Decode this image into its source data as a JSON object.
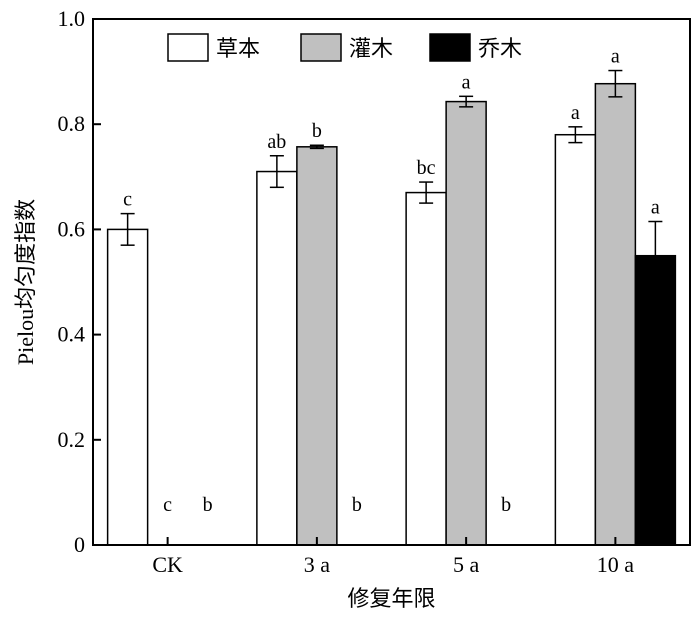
{
  "chart_data": {
    "type": "bar",
    "xlabel": "修复年限",
    "ylabel": "Pielou均匀度指数",
    "ylim": [
      0,
      1.0
    ],
    "yticks": [
      "0",
      "0.2",
      "0.4",
      "0.6",
      "0.8",
      "1.0"
    ],
    "categories": [
      "CK",
      "3 a",
      "5 a",
      "10 a"
    ],
    "legend_position": "top",
    "series": [
      {
        "name": "草本",
        "color": "#ffffff",
        "values": [
          0.6,
          0.71,
          0.67,
          0.78
        ],
        "errors": [
          0.03,
          0.03,
          0.02,
          0.015
        ],
        "labels": [
          "c",
          "ab",
          "bc",
          "a"
        ]
      },
      {
        "name": "灌木",
        "color": "#c0c0c0",
        "values": [
          0,
          0.757,
          0.843,
          0.877
        ],
        "errors": [
          0,
          0.003,
          0.01,
          0.025
        ],
        "labels": [
          "c",
          "b",
          "a",
          "a"
        ]
      },
      {
        "name": "乔木",
        "color": "#000000",
        "values": [
          0,
          0,
          0,
          0.55
        ],
        "errors": [
          0,
          0,
          0,
          0.065
        ],
        "labels": [
          "b",
          "b",
          "b",
          "a"
        ]
      }
    ]
  }
}
